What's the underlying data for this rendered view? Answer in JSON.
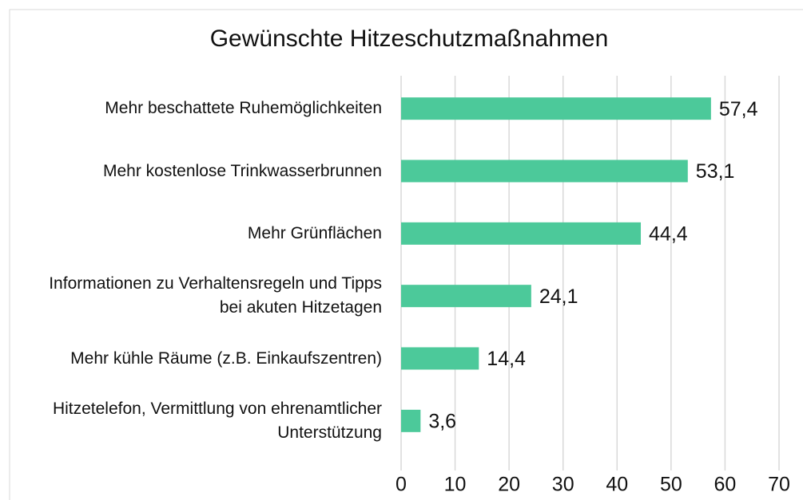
{
  "chart_data": {
    "type": "bar",
    "orientation": "horizontal",
    "title": "Gewünschte Hitzeschutzmaßnahmen",
    "categories": [
      "Mehr beschattete Ruhemöglichkeiten",
      "Mehr kostenlose Trinkwasserbrunnen",
      "Mehr Grünflächen",
      "Informationen zu Verhaltensregeln und Tipps bei akuten Hitzetagen",
      "Mehr kühle Räume (z.B. Einkaufszentren)",
      "Hitzetelefon, Vermittlung von ehrenamtlicher Unterstützung"
    ],
    "values": [
      57.4,
      53.1,
      44.4,
      24.1,
      14.4,
      3.6
    ],
    "value_labels": [
      "57,4",
      "53,1",
      "44,4",
      "24,1",
      "14,4",
      "3,6"
    ],
    "color": "#4cc99a",
    "xlim": [
      0,
      70
    ],
    "xticks": [
      0,
      10,
      20,
      30,
      40,
      50,
      60,
      70
    ],
    "grid": true
  }
}
